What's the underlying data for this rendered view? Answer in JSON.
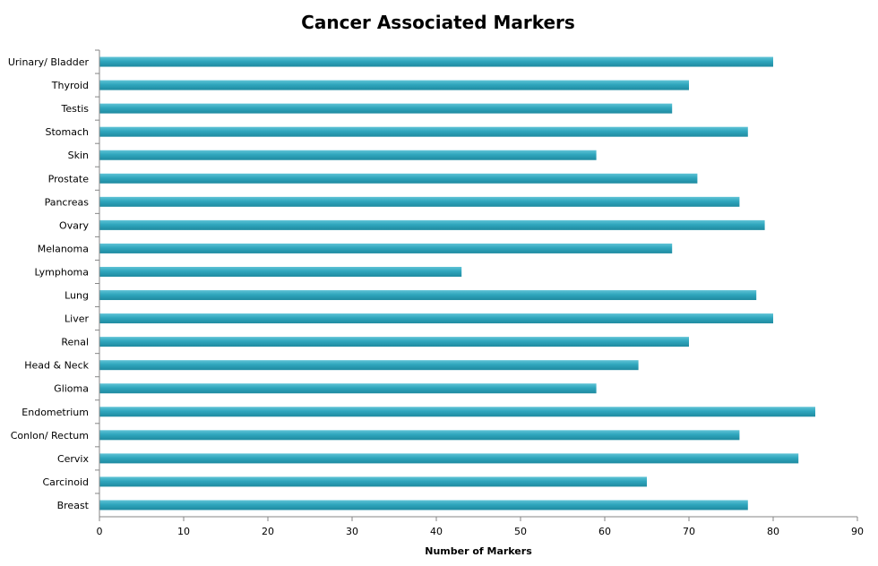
{
  "chart_data": {
    "type": "bar",
    "orientation": "horizontal",
    "title": "Cancer Associated Markers",
    "xlabel": "Number of Markers",
    "ylabel": "",
    "xlim": [
      0,
      90
    ],
    "x_ticks": [
      "0",
      "10",
      "20",
      "30",
      "40",
      "50",
      "60",
      "70",
      "80",
      "90"
    ],
    "grid": false,
    "bar_color": "#2fa6bd",
    "categories": [
      "Urinary/ Bladder",
      "Thyroid",
      "Testis",
      "Stomach",
      "Skin",
      "Prostate",
      "Pancreas",
      "Ovary",
      "Melanoma",
      "Lymphoma",
      "Lung",
      "Liver",
      "Renal",
      "Head & Neck",
      "Glioma",
      "Endometrium",
      "Conlon/ Rectum",
      "Cervix",
      "Carcinoid",
      "Breast"
    ],
    "values": [
      80,
      70,
      68,
      77,
      59,
      71,
      76,
      79,
      68,
      43,
      78,
      80,
      70,
      64,
      59,
      85,
      76,
      83,
      65,
      77
    ]
  }
}
